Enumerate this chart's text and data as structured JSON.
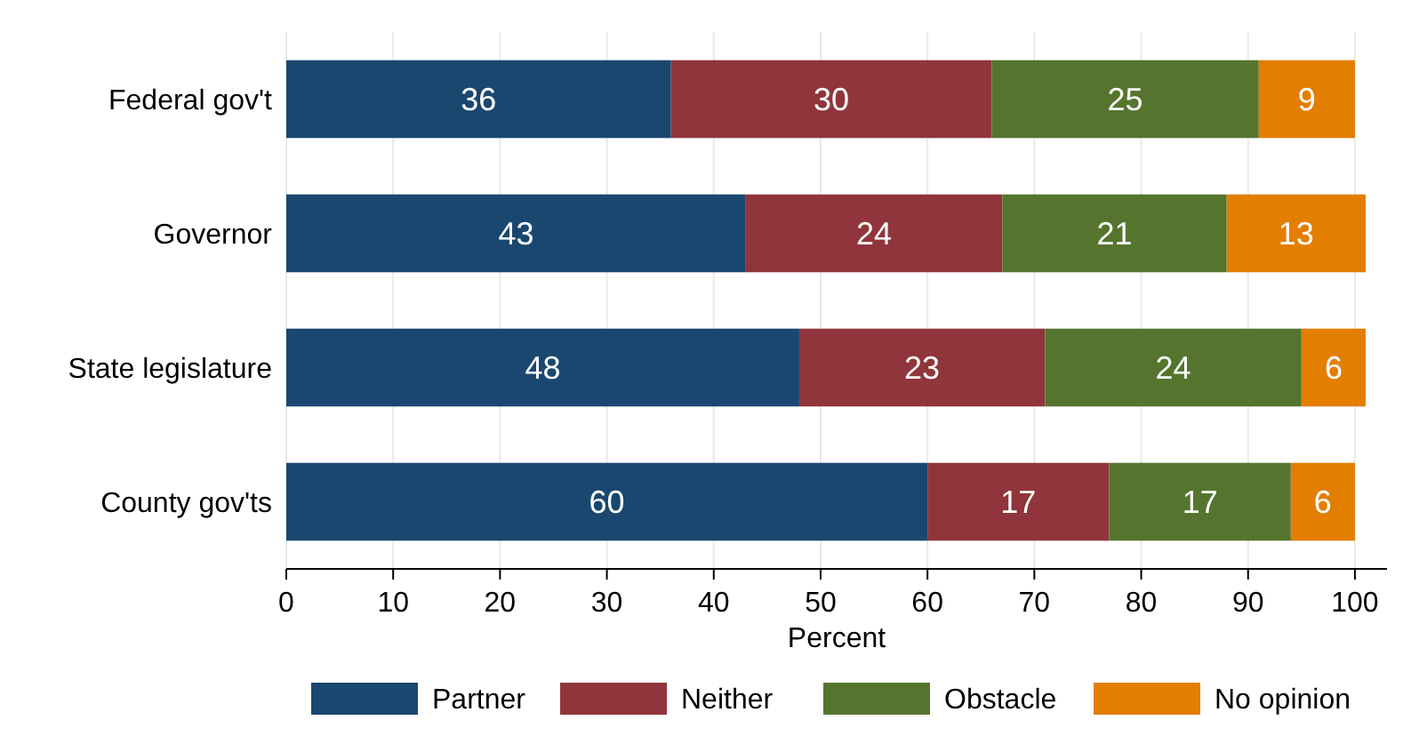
{
  "chart_data": {
    "type": "bar",
    "orientation": "horizontal",
    "stacked": true,
    "xlabel": "Percent",
    "categories": [
      "Federal gov't",
      "Governor",
      "State legislature",
      "County gov'ts"
    ],
    "series": [
      {
        "name": "Partner",
        "color": "#1a476f",
        "values": [
          36,
          43,
          48,
          60
        ]
      },
      {
        "name": "Neither",
        "color": "#90353b",
        "values": [
          30,
          24,
          23,
          17
        ]
      },
      {
        "name": "Obstacle",
        "color": "#55752f",
        "values": [
          25,
          21,
          24,
          17
        ]
      },
      {
        "name": "No opinion",
        "color": "#e37e00",
        "values": [
          9,
          13,
          6,
          6
        ]
      }
    ],
    "xlim": [
      0,
      103
    ],
    "xticks": [
      0,
      10,
      20,
      30,
      40,
      50,
      60,
      70,
      80,
      90,
      100
    ],
    "grid": "x",
    "legend": "bottom",
    "data_labels": true
  }
}
